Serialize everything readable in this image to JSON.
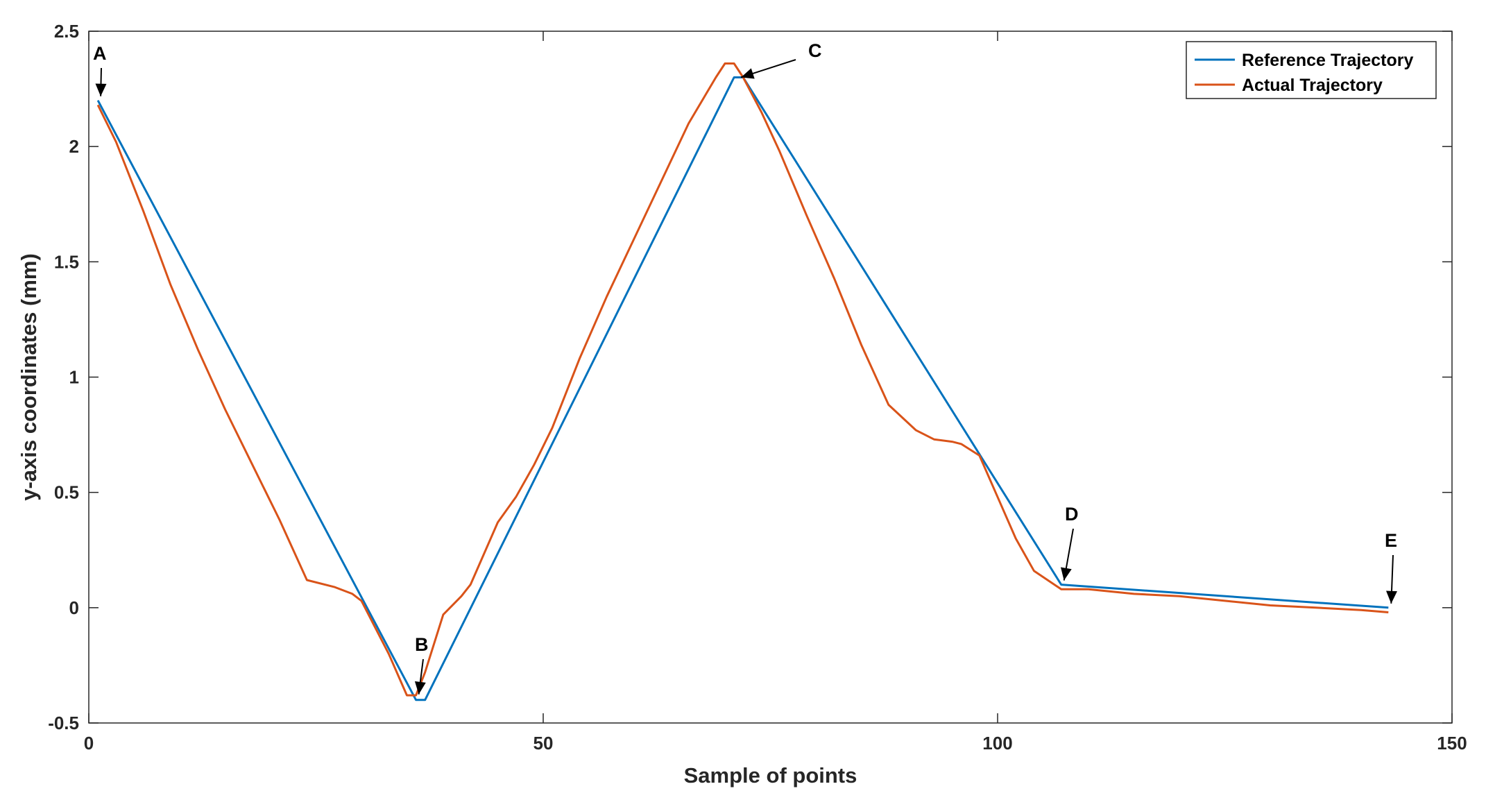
{
  "chart_data": {
    "type": "line",
    "title": "",
    "xlabel": "Sample of points",
    "ylabel": "y-axis coordinates (mm)",
    "xlim": [
      0,
      150
    ],
    "ylim": [
      -0.5,
      2.5
    ],
    "xticks": [
      0,
      50,
      100,
      150
    ],
    "xtick_labels": [
      "0",
      "50",
      "100",
      "150"
    ],
    "yticks": [
      -0.5,
      0,
      0.5,
      1,
      1.5,
      2,
      2.5
    ],
    "ytick_labels": [
      "-0.5",
      "0",
      "0.5",
      "1",
      "1.5",
      "2",
      "2.5"
    ],
    "grid": false,
    "legend_position": "top-right",
    "series": [
      {
        "name": "Reference Trajectory",
        "color": "#0072BD",
        "x": [
          1,
          36,
          37,
          71,
          72,
          107,
          143
        ],
        "y": [
          2.2,
          -0.4,
          -0.4,
          2.3,
          2.3,
          0.1,
          0.0
        ]
      },
      {
        "name": "Actual Trajectory",
        "color": "#D95319",
        "x": [
          1,
          3,
          6,
          9,
          12,
          15,
          18,
          21,
          24,
          27,
          29,
          30,
          33,
          35,
          36,
          37,
          39,
          41,
          42,
          45,
          47,
          49,
          51,
          54,
          57,
          60,
          63,
          66,
          69,
          70,
          71,
          72,
          74,
          76,
          79,
          82,
          85,
          88,
          91,
          93,
          95,
          96,
          98,
          100,
          102,
          104,
          107,
          110,
          115,
          120,
          125,
          130,
          135,
          140,
          143
        ],
        "y": [
          2.18,
          2.02,
          1.72,
          1.4,
          1.12,
          0.86,
          0.62,
          0.38,
          0.12,
          0.09,
          0.06,
          0.03,
          -0.2,
          -0.38,
          -0.38,
          -0.28,
          -0.03,
          0.05,
          0.1,
          0.37,
          0.48,
          0.62,
          0.78,
          1.08,
          1.35,
          1.6,
          1.85,
          2.1,
          2.3,
          2.36,
          2.36,
          2.3,
          2.15,
          1.98,
          1.7,
          1.43,
          1.14,
          0.88,
          0.77,
          0.73,
          0.72,
          0.71,
          0.66,
          0.48,
          0.3,
          0.16,
          0.08,
          0.08,
          0.06,
          0.05,
          0.03,
          0.01,
          0.0,
          -0.01,
          -0.02
        ]
      }
    ],
    "annotations": [
      {
        "label": "A",
        "x": 1,
        "y": 2.2
      },
      {
        "label": "B",
        "x": 36,
        "y": -0.4
      },
      {
        "label": "C",
        "x": 71,
        "y": 2.3
      },
      {
        "label": "D",
        "x": 107,
        "y": 0.1
      },
      {
        "label": "E",
        "x": 143,
        "y": 0.0
      }
    ]
  }
}
